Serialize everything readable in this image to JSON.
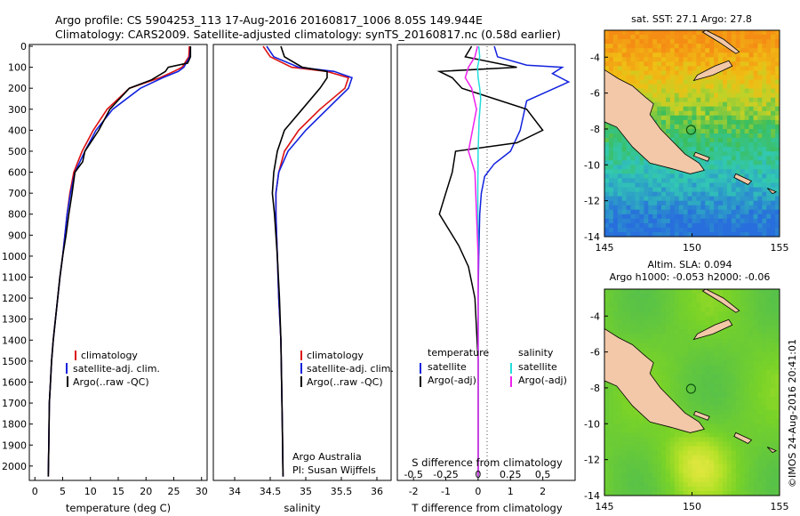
{
  "header": {
    "title_line1": "Argo profile: CS 5904253_113 17-Aug-2016 20160817_1006 8.05S 149.944E",
    "title_line2": "Climatology: CARS2009. Satellite-adjusted climatology: synTS_20160817.nc (0.58d earlier)"
  },
  "colors": {
    "climatology": "#dd1111",
    "satellite": "#1122dd",
    "argo": "#000000",
    "salinity_satellite": "#22dddd",
    "salinity_argo": "#ee22ee",
    "land": "#f2c8a8"
  },
  "chart_data": [
    {
      "type": "line",
      "panel": "temperature",
      "xlabel": "temperature (deg C)",
      "ylabel": "",
      "xlim": [
        -1,
        31
      ],
      "ylim": [
        2060,
        0
      ],
      "y_inverted": true,
      "xticks": [
        "0",
        "5",
        "10",
        "15",
        "20",
        "25",
        "30"
      ],
      "xtick_values": [
        0,
        5,
        10,
        15,
        20,
        25,
        30
      ],
      "yticks": [
        "0",
        "100",
        "200",
        "300",
        "400",
        "500",
        "600",
        "700",
        "800",
        "900",
        "1000",
        "1100",
        "1200",
        "1300",
        "1400",
        "1500",
        "1600",
        "1700",
        "1800",
        "1900",
        "2000"
      ],
      "ytick_values": [
        0,
        100,
        200,
        300,
        400,
        500,
        600,
        700,
        800,
        900,
        1000,
        1100,
        1200,
        1300,
        1400,
        1500,
        1600,
        1700,
        1800,
        1900,
        2000
      ],
      "legend": [
        "climatology",
        "satellite-adj. clim.",
        "Argo(..raw -QC)"
      ],
      "series": [
        {
          "name": "climatology",
          "color": "#dd1111",
          "x": [
            27.8,
            27.7,
            26.5,
            25.0,
            22.5,
            17.0,
            13.0,
            10.5,
            8.5,
            7.0,
            6.3,
            5.8,
            5.4,
            5.0,
            4.5,
            4.1,
            3.7,
            3.3,
            3.0,
            2.8,
            2.6,
            2.5,
            2.4
          ],
          "y": [
            0,
            50,
            100,
            120,
            150,
            200,
            300,
            400,
            500,
            600,
            700,
            800,
            900,
            1000,
            1100,
            1200,
            1300,
            1400,
            1500,
            1600,
            1700,
            1900,
            2050
          ]
        },
        {
          "name": "satellite-adj. clim.",
          "color": "#1122dd",
          "x": [
            28.0,
            27.9,
            26.8,
            25.8,
            23.0,
            19.0,
            14.0,
            11.0,
            9.0,
            7.2,
            6.4,
            5.8,
            5.4,
            5.0,
            4.5,
            4.1,
            3.7,
            3.3,
            3.0,
            2.8,
            2.6,
            2.5,
            2.4
          ],
          "y": [
            0,
            50,
            100,
            120,
            150,
            200,
            300,
            400,
            500,
            600,
            700,
            800,
            900,
            1000,
            1100,
            1200,
            1300,
            1400,
            1500,
            1600,
            1700,
            1900,
            2050
          ]
        },
        {
          "name": "Argo(..raw -QC)",
          "color": "#000000",
          "x": [
            28.0,
            28.0,
            27.5,
            24.0,
            23.5,
            21.0,
            17.0,
            13.5,
            11.5,
            9.0,
            8.6,
            7.2,
            6.7,
            6.1,
            5.6,
            5.0,
            4.5,
            4.1,
            3.7,
            3.3,
            3.0,
            2.8,
            2.6,
            2.5,
            2.4
          ],
          "y": [
            0,
            50,
            80,
            100,
            120,
            160,
            200,
            300,
            400,
            500,
            550,
            600,
            700,
            800,
            900,
            1000,
            1100,
            1200,
            1300,
            1400,
            1500,
            1600,
            1700,
            1900,
            2050
          ]
        }
      ]
    },
    {
      "type": "line",
      "panel": "salinity",
      "xlabel": "salinity",
      "xlim": [
        33.7,
        36.2
      ],
      "ylim": [
        2060,
        0
      ],
      "y_inverted": true,
      "xticks": [
        "34",
        "34.5",
        "35",
        "35.5",
        "36"
      ],
      "xtick_values": [
        34,
        34.5,
        35,
        35.5,
        36
      ],
      "legend": [
        "climatology",
        "satellite-adj. clim.",
        "Argo(..raw -QC)"
      ],
      "annotation": [
        "Argo Australia",
        "PI: Susan Wijffels"
      ],
      "series": [
        {
          "name": "climatology",
          "color": "#dd1111",
          "x": [
            34.4,
            34.5,
            34.8,
            35.3,
            35.6,
            35.55,
            35.2,
            34.9,
            34.7,
            34.62,
            34.58,
            34.58,
            34.6,
            34.62,
            34.65,
            34.66,
            34.67,
            34.68
          ],
          "y": [
            0,
            50,
            100,
            120,
            150,
            200,
            300,
            400,
            500,
            600,
            700,
            800,
            1000,
            1200,
            1400,
            1600,
            1800,
            2050
          ]
        },
        {
          "name": "satellite-adj. clim.",
          "color": "#1122dd",
          "x": [
            34.45,
            34.55,
            34.9,
            35.4,
            35.65,
            35.6,
            35.3,
            35.0,
            34.75,
            34.62,
            34.58,
            34.58,
            34.6,
            34.62,
            34.65,
            34.66,
            34.67,
            34.68
          ],
          "y": [
            0,
            50,
            100,
            120,
            150,
            200,
            300,
            400,
            500,
            600,
            700,
            800,
            1000,
            1200,
            1400,
            1600,
            1800,
            2050
          ]
        },
        {
          "name": "Argo(..raw -QC)",
          "color": "#000000",
          "x": [
            34.65,
            34.7,
            34.95,
            35.3,
            35.3,
            35.2,
            34.95,
            34.7,
            34.6,
            34.55,
            34.53,
            34.56,
            34.6,
            34.63,
            34.65,
            34.66,
            34.67,
            34.68
          ],
          "y": [
            0,
            50,
            100,
            120,
            150,
            200,
            300,
            400,
            500,
            600,
            700,
            800,
            1000,
            1200,
            1400,
            1600,
            1800,
            2050
          ]
        }
      ]
    },
    {
      "type": "line",
      "panel": "difference",
      "xlabel": "T difference from climatology",
      "top_label": "S difference from climatology",
      "xlim": [
        -2.5,
        3.0
      ],
      "ylim": [
        2060,
        0
      ],
      "y_inverted": true,
      "xticks": [
        "-2",
        "-1",
        "0",
        "1",
        "2"
      ],
      "xtick_values": [
        -2,
        -1,
        0,
        1,
        2
      ],
      "top_ticks": [
        "-0.5",
        "-0.25",
        "0",
        "0.25",
        "0.5"
      ],
      "top_tick_values": [
        -0.5,
        -0.25,
        0,
        0.25,
        0.5
      ],
      "legend_headers": [
        "temperature",
        "salinity"
      ],
      "legend": [
        "satellite",
        "Argo(-adj)",
        "satellite",
        "Argo(-adj)"
      ],
      "series": [
        {
          "name": "temperature satellite",
          "color": "#1122dd",
          "x": [
            0.5,
            0.6,
            1.5,
            2.6,
            2.3,
            2.8,
            1.5,
            1.3,
            1.0,
            0.5,
            0.2,
            0.1,
            0.05,
            0.02,
            0.0,
            0.0,
            0.0
          ],
          "y": [
            0,
            50,
            90,
            100,
            130,
            170,
            260,
            400,
            500,
            560,
            620,
            700,
            800,
            1000,
            1200,
            1500,
            2050
          ]
        },
        {
          "name": "temperature Argo(-adj)",
          "color": "#000000",
          "x": [
            -0.2,
            -0.4,
            1.2,
            -1.2,
            -0.8,
            -0.5,
            0.5,
            1.5,
            2.0,
            1.2,
            -0.7,
            -0.8,
            -1.0,
            -1.2,
            -0.6,
            -0.3,
            -0.1,
            0.0,
            0.0
          ],
          "y": [
            0,
            50,
            100,
            120,
            150,
            200,
            250,
            300,
            400,
            460,
            500,
            600,
            700,
            800,
            950,
            1050,
            1200,
            1500,
            2050
          ]
        },
        {
          "name": "salinity satellite",
          "color": "#22dddd",
          "x": [
            0.02,
            0.05,
            -0.02,
            0.0,
            0.05,
            0.08,
            0.03,
            0.0,
            -0.01,
            0.0,
            0.0,
            0.0
          ],
          "y": [
            0,
            50,
            100,
            150,
            200,
            250,
            350,
            500,
            700,
            1000,
            1500,
            2050
          ]
        },
        {
          "name": "salinity Argo(-adj)",
          "color": "#ee22ee",
          "x": [
            -0.02,
            -0.1,
            -0.3,
            -0.4,
            -0.2,
            -0.05,
            -0.3,
            -0.1,
            -0.05,
            0.0,
            0.0,
            0.0
          ],
          "y": [
            0,
            50,
            100,
            150,
            200,
            300,
            500,
            600,
            800,
            1000,
            1500,
            2050
          ]
        }
      ]
    },
    {
      "type": "heatmap",
      "panel": "sst-map",
      "title": "sat. SST: 27.1  Argo: 27.8",
      "xlim": [
        145,
        155
      ],
      "ylim": [
        -14,
        -2.5
      ],
      "xticks": [
        "145",
        "150",
        "155"
      ],
      "xtick_values": [
        145,
        150,
        155
      ],
      "yticks": [
        "-4",
        "-6",
        "-8",
        "-10",
        "-12",
        "-14"
      ],
      "ytick_values": [
        -4,
        -6,
        -8,
        -10,
        -12,
        -14
      ],
      "marker": {
        "lon": 149.944,
        "lat": -8.05
      }
    },
    {
      "type": "heatmap",
      "panel": "sla-map",
      "title": "Altim. SLA: 0.094",
      "subtitle": "Argo h1000: -0.053 h2000: -0.06",
      "xlim": [
        145,
        155
      ],
      "ylim": [
        -14,
        -2.5
      ],
      "xticks": [
        "145",
        "150",
        "155"
      ],
      "xtick_values": [
        145,
        150,
        155
      ],
      "yticks": [
        "-4",
        "-6",
        "-8",
        "-10",
        "-12",
        "-14"
      ],
      "ytick_values": [
        -4,
        -6,
        -8,
        -10,
        -12,
        -14
      ],
      "marker": {
        "lon": 149.944,
        "lat": -8.05
      }
    }
  ],
  "footer": {
    "credit": "©IMOS 24-Aug-2016 20:41:01"
  }
}
